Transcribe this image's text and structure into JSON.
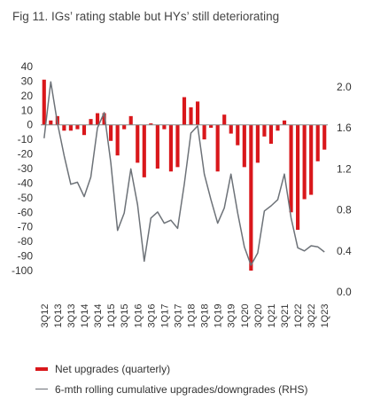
{
  "title": "Fig 11. IGs’ rating stable but HYs’ still deteriorating",
  "chart_data": {
    "type": "bar+line",
    "title": "Fig 11. IGs’ rating stable but HYs’ still deteriorating",
    "x": [
      "3Q12",
      "4Q12",
      "1Q13",
      "2Q13",
      "3Q13",
      "4Q13",
      "1Q14",
      "2Q14",
      "3Q14",
      "4Q14",
      "1Q15",
      "2Q15",
      "3Q15",
      "4Q15",
      "1Q16",
      "2Q16",
      "3Q16",
      "4Q16",
      "1Q17",
      "2Q17",
      "3Q17",
      "4Q17",
      "1Q18",
      "2Q18",
      "3Q18",
      "4Q18",
      "1Q19",
      "2Q19",
      "3Q19",
      "4Q19",
      "1Q20",
      "2Q20",
      "3Q20",
      "4Q20",
      "1Q21",
      "2Q21",
      "3Q21",
      "4Q21",
      "1Q22",
      "2Q22",
      "3Q22",
      "4Q22",
      "1Q23"
    ],
    "x_tick_labels": [
      "3Q12",
      "1Q13",
      "3Q13",
      "1Q14",
      "3Q14",
      "1Q15",
      "3Q15",
      "1Q16",
      "3Q16",
      "1Q17",
      "3Q17",
      "1Q18",
      "3Q18",
      "1Q19",
      "3Q19",
      "1Q20",
      "3Q20",
      "1Q21",
      "3Q21",
      "1Q22",
      "3Q22",
      "1Q23"
    ],
    "y_left": {
      "lim": [
        -100,
        40
      ],
      "ticks": [
        40,
        30,
        20,
        10,
        0,
        -10,
        -20,
        -30,
        -40,
        -50,
        -60,
        -70,
        -80,
        -90,
        -100
      ]
    },
    "y_right": {
      "lim": [
        0.0,
        2.0
      ],
      "ticks": [
        "2.0",
        "1.6",
        "1.2",
        "0.8",
        "0.4",
        "0.0"
      ]
    },
    "series": [
      {
        "name": "Net upgrades (quarterly)",
        "kind": "bar",
        "axis": "left",
        "color": "#d9171b",
        "values": [
          31,
          3,
          6,
          -4,
          -4,
          -3,
          -7,
          4,
          8,
          8,
          -11,
          -21,
          -3,
          6,
          -26,
          -36,
          1,
          -30,
          -3,
          -32,
          -29,
          19,
          12,
          16,
          -10,
          -2,
          -32,
          7,
          -6,
          -14,
          -29,
          -100,
          -26,
          -8,
          -13,
          -4,
          3,
          -60,
          -72,
          -51,
          -48,
          -25,
          -17
        ]
      },
      {
        "name": "6-mth rolling cumulative upgrades/downgrades (RHS)",
        "kind": "line",
        "axis": "right",
        "color": "#6d7278",
        "values": [
          1.5,
          2.05,
          1.65,
          1.33,
          1.05,
          1.07,
          0.93,
          1.12,
          1.6,
          1.75,
          1.26,
          0.6,
          0.77,
          1.2,
          0.85,
          0.3,
          0.72,
          0.78,
          0.67,
          0.7,
          0.62,
          1.05,
          1.55,
          1.62,
          1.15,
          0.9,
          0.67,
          0.82,
          1.15,
          0.77,
          0.44,
          0.26,
          0.38,
          0.79,
          0.84,
          0.9,
          1.15,
          0.72,
          0.43,
          0.4,
          0.45,
          0.44,
          0.39
        ]
      }
    ],
    "legend": "bottom-left"
  }
}
